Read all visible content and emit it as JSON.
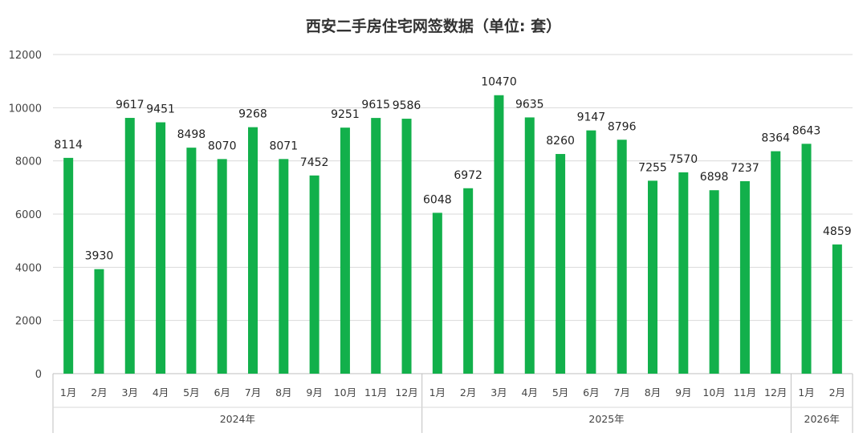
{
  "chart_data": {
    "type": "bar",
    "title": "西安二手房住宅网签数据（单位: 套）",
    "ylim": [
      0,
      12000
    ],
    "yticks": [
      0,
      2000,
      4000,
      6000,
      8000,
      10000,
      12000
    ],
    "grid": true,
    "bar_color": "#12b04b",
    "groups": [
      {
        "label": "2024年",
        "categories": [
          "1月",
          "2月",
          "3月",
          "4月",
          "5月",
          "6月",
          "7月",
          "8月",
          "9月",
          "10月",
          "11月",
          "12月"
        ],
        "values": [
          8114,
          3930,
          9617,
          9451,
          8498,
          8070,
          9268,
          8071,
          7452,
          9251,
          9615,
          9586
        ]
      },
      {
        "label": "2025年",
        "categories": [
          "1月",
          "2月",
          "3月",
          "4月",
          "5月",
          "6月",
          "7月",
          "8月",
          "9月",
          "10月",
          "11月",
          "12月"
        ],
        "values": [
          6048,
          6972,
          10470,
          9635,
          8260,
          9147,
          8796,
          7255,
          7570,
          6898,
          7237,
          8364
        ]
      },
      {
        "label": "2026年",
        "categories": [
          "1月",
          "2月"
        ],
        "values": [
          8643,
          4859
        ]
      }
    ]
  }
}
